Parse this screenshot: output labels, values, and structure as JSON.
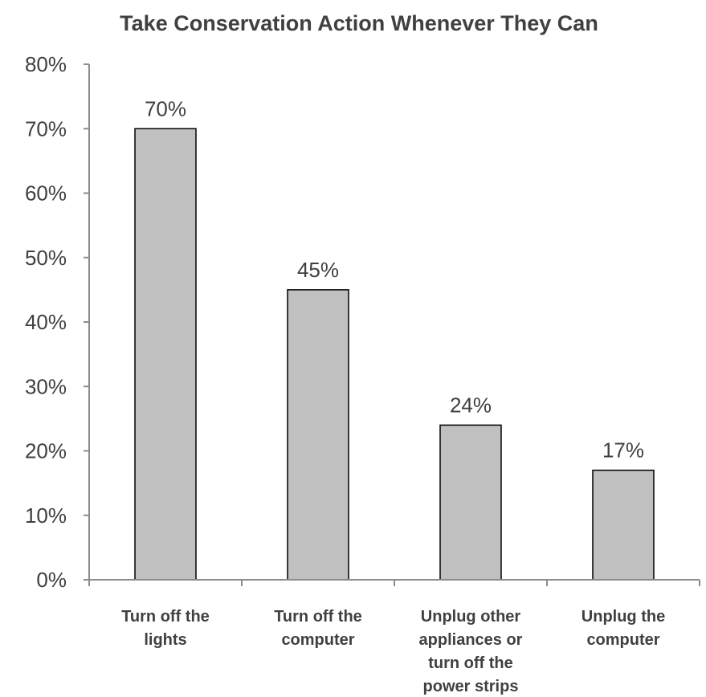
{
  "chart_data": {
    "type": "bar",
    "title": "Take Conservation Action Whenever They Can",
    "categories": [
      [
        "Turn off the",
        "lights"
      ],
      [
        "Turn off the",
        "computer"
      ],
      [
        "Unplug other",
        "appliances or",
        "turn off the",
        "power strips"
      ],
      [
        "Unplug the",
        "computer"
      ]
    ],
    "values": [
      70,
      45,
      24,
      17
    ],
    "value_labels": [
      "70%",
      "45%",
      "24%",
      "17%"
    ],
    "y_ticks": [
      "0%",
      "10%",
      "20%",
      "30%",
      "40%",
      "50%",
      "60%",
      "70%",
      "80%"
    ],
    "ylim": [
      0,
      80
    ],
    "xlabel": "",
    "ylabel": "",
    "grid": false,
    "legend": "none",
    "bar_color": "#c0c0c0",
    "bar_edge_color": "#000000",
    "text_color": "#404040",
    "axis_color": "#8c8c8c"
  }
}
